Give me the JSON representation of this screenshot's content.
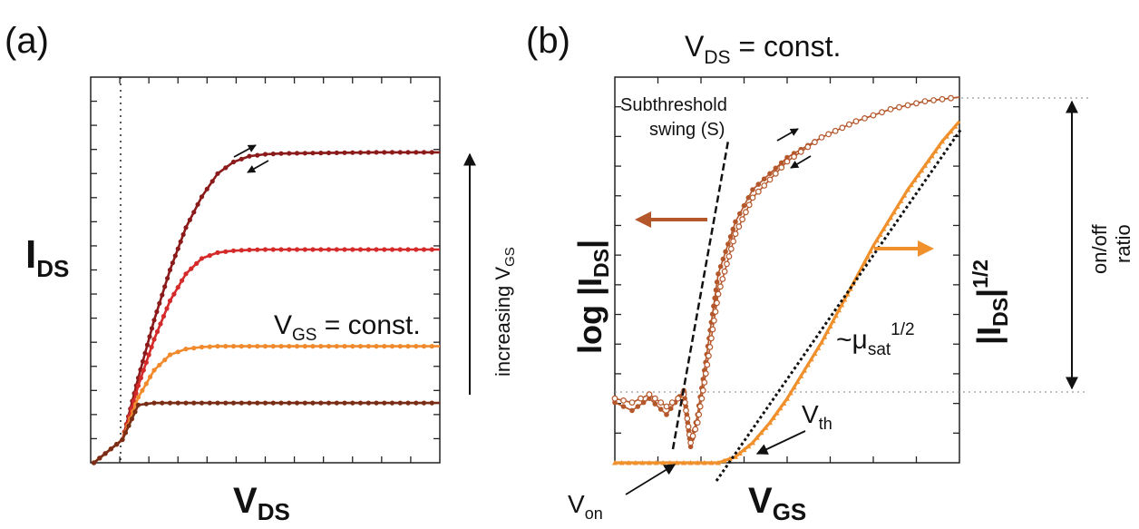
{
  "figure": {
    "panel_a": {
      "label": "(a)",
      "xlabel": "V",
      "xlabel_sub": "DS",
      "ylabel": "I",
      "ylabel_sub": "DS",
      "annotation_vgs": "V",
      "annotation_vgs_sub": "GS",
      "annotation_vgs_rest": " = const.",
      "arrow_label": "increasing V",
      "arrow_label_sub": "GS"
    },
    "panel_b": {
      "label": "(b)",
      "title": "V",
      "title_sub": "DS",
      "title_rest": " = const.",
      "xlabel": "V",
      "xlabel_sub": "GS",
      "ylabel_left": "log |I",
      "ylabel_left_sub": "DS",
      "ylabel_left_end": "|",
      "ylabel_right": "|I",
      "ylabel_right_sub": "DS",
      "ylabel_right_end": "|",
      "ylabel_right_sup": "1/2",
      "ss_label_line1": "Subthreshold",
      "ss_label_line2": "swing (S)",
      "mu_label": "~μ",
      "mu_label_sub": "sat",
      "mu_label_sup": "1/2",
      "vth_label": "V",
      "vth_label_sub": "th",
      "von_label": "V",
      "von_label_sub": "on",
      "onoff_line1": "on/off",
      "onoff_line2": "ratio"
    }
  },
  "colors": {
    "dark_red": "#8b1a1a",
    "red": "#d42a2a",
    "orange": "#f08a2c",
    "brown": "#7a2d16",
    "log_curve": "#b4572b",
    "sqrt_curve": "#f0902c",
    "arrow_left": "#b4572b",
    "arrow_right": "#f0902c"
  },
  "chart_data": [
    {
      "type": "line",
      "panel": "a",
      "xlabel": "VDS",
      "ylabel": "IDS",
      "grid": false,
      "series": [
        {
          "x": [
            0,
            0.5,
            1,
            1.5,
            2,
            2.5,
            3,
            3.5,
            4,
            4.5,
            5,
            6,
            7,
            8,
            9,
            10
          ],
          "values": [
            0,
            1.6,
            3.1,
            4.4,
            5.5,
            6.3,
            6.9,
            7.2,
            7.35,
            7.4,
            7.42,
            7.43,
            7.44,
            7.45,
            7.45,
            7.45
          ]
        },
        {
          "x": [
            0,
            0.5,
            1,
            1.5,
            2,
            2.5,
            3,
            3.5,
            4,
            4.5,
            5,
            6,
            7,
            8,
            9,
            10
          ],
          "values": [
            0,
            1.4,
            2.6,
            3.6,
            4.3,
            4.7,
            4.85,
            4.9,
            4.92,
            4.93,
            4.93,
            4.93,
            4.93,
            4.93,
            4.93,
            4.93
          ]
        },
        {
          "x": [
            0,
            0.5,
            1,
            1.5,
            2,
            2.5,
            3,
            3.5,
            4,
            4.5,
            5,
            6,
            7,
            8,
            9,
            10
          ],
          "values": [
            0,
            1.1,
            1.8,
            2.2,
            2.35,
            2.4,
            2.42,
            2.42,
            2.42,
            2.42,
            2.42,
            2.42,
            2.42,
            2.42,
            2.42,
            2.42
          ]
        },
        {
          "x": [
            0,
            0.5,
            1,
            1.5,
            2,
            2.5,
            3,
            3.5,
            4,
            4.5,
            5,
            6,
            7,
            8,
            9,
            10
          ],
          "values": [
            0,
            0.9,
            0.95,
            0.95,
            0.95,
            0.95,
            0.95,
            0.95,
            0.95,
            0.95,
            0.95,
            0.95,
            0.95,
            0.95,
            0.95,
            0.95
          ]
        }
      ]
    },
    {
      "type": "line",
      "panel": "b",
      "xlabel": "VGS",
      "ylabel": "log |IDS|",
      "ylabel_right": "|IDS|1/2",
      "grid": false,
      "series": [
        {
          "x": [
            0,
            0.5,
            1,
            1.5,
            2,
            2.2,
            2.4,
            2.6,
            2.8,
            3,
            3.5,
            4,
            5,
            6,
            7,
            8,
            9,
            10
          ],
          "values": [
            1.5,
            1.3,
            1.6,
            1.2,
            1.8,
            0.4,
            1.2,
            2.3,
            3.5,
            4.7,
            6.0,
            6.8,
            7.6,
            8.1,
            8.5,
            8.8,
            9.0,
            9.1
          ]
        },
        {
          "x": [
            0,
            0.5,
            1,
            1.5,
            2,
            2.2,
            2.4,
            2.6,
            2.8,
            3,
            3.5,
            4,
            5,
            6,
            7,
            8,
            9,
            10
          ],
          "values": [
            1.6,
            1.5,
            1.7,
            1.4,
            1.7,
            0.5,
            1.0,
            2.0,
            3.1,
            4.2,
            5.7,
            6.6,
            7.5,
            8.1,
            8.5,
            8.8,
            9.0,
            9.1
          ]
        },
        {
          "x": [
            0,
            1,
            2,
            3,
            3.5,
            4,
            4.5,
            5,
            5.5,
            6,
            6.5,
            7,
            7.5,
            8,
            8.5,
            9,
            9.5,
            10
          ],
          "values": [
            0,
            0,
            0,
            0,
            0.15,
            0.5,
            1.0,
            1.6,
            2.3,
            3.0,
            3.8,
            4.6,
            5.4,
            6.1,
            6.8,
            7.4,
            8.0,
            8.5
          ]
        }
      ]
    }
  ]
}
